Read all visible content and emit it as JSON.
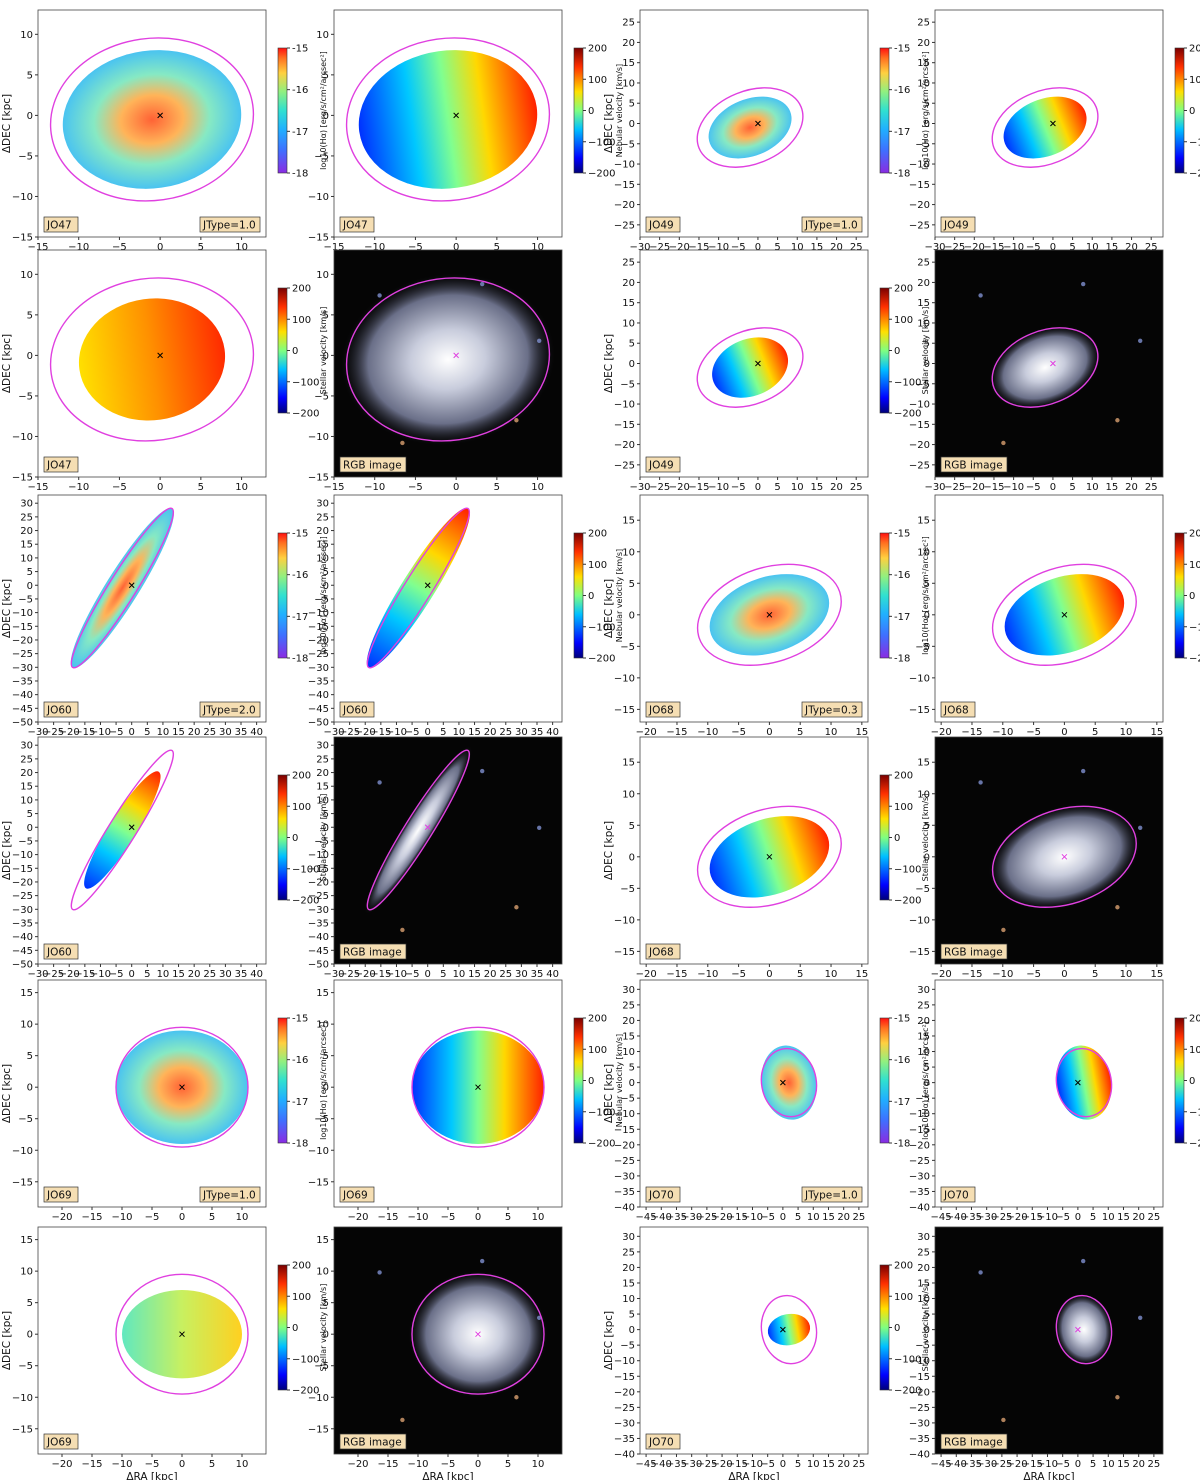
{
  "figure": {
    "colors": {
      "contour": "#e040e0",
      "tag_fill": "#f5deb3",
      "rgb_background": "#050505"
    },
    "labels": {
      "dec": "ΔDEC [kpc]",
      "ra": "ΔRA [kpc]",
      "ha_cbar": "log10(Hα) [erg/s/cm²/arcsec²]",
      "nebular_cbar": "Nebular velocity [km/s]",
      "stellar_cbar": "Stellar velocity [km/s]",
      "rgb": "RGB image"
    },
    "ha_cbar_ticks": [
      "-15",
      "-16",
      "-17",
      "-18"
    ],
    "vel_cbar_ticks": [
      "200",
      "100",
      "0",
      "−100",
      "−200"
    ]
  },
  "chart_data": [
    {
      "type": "heatmap",
      "galaxy": "JO47",
      "panel": "Hα flux",
      "jtype": "JType=1.0",
      "xlim": [
        -15,
        13
      ],
      "ylim": [
        -15,
        13
      ],
      "xticks": [
        -15,
        -10,
        -5,
        0,
        5,
        10
      ],
      "yticks": [
        -15,
        -10,
        -5,
        0,
        5,
        10
      ],
      "colorbar": {
        "label": "log10(Hα) [erg/s/cm²/arcsec²]",
        "range": [
          -18,
          -15
        ]
      }
    },
    {
      "type": "heatmap",
      "galaxy": "JO47",
      "panel": "Nebular velocity",
      "xlim": [
        -15,
        13
      ],
      "ylim": [
        -15,
        13
      ],
      "xticks": [
        -15,
        -10,
        -5,
        0,
        5,
        10
      ],
      "yticks": [
        -15,
        -10,
        -5,
        0,
        5,
        10
      ],
      "colorbar": {
        "label": "Nebular velocity [km/s]",
        "range": [
          -200,
          200
        ]
      }
    },
    {
      "type": "heatmap",
      "galaxy": "JO47",
      "panel": "Stellar velocity",
      "xlim": [
        -15,
        13
      ],
      "ylim": [
        -15,
        13
      ],
      "xticks": [
        -15,
        -10,
        -5,
        0,
        5,
        10
      ],
      "yticks": [
        -15,
        -10,
        -5,
        0,
        5,
        10
      ],
      "colorbar": {
        "label": "Stellar velocity [km/s]",
        "range": [
          -200,
          200
        ]
      }
    },
    {
      "type": "heatmap",
      "galaxy": "JO47",
      "panel": "RGB image",
      "xlim": [
        -15,
        13
      ],
      "ylim": [
        -15,
        13
      ],
      "xticks": [
        -15,
        -10,
        -5,
        0,
        5,
        10
      ],
      "yticks": [
        -15,
        -10,
        -5,
        0,
        5,
        10
      ]
    },
    {
      "type": "heatmap",
      "galaxy": "JO49",
      "panel": "Hα flux",
      "jtype": "JType=1.0",
      "xlim": [
        -30,
        28
      ],
      "ylim": [
        -28,
        28
      ],
      "xticks": [
        -30,
        -25,
        -20,
        -15,
        -10,
        -5,
        0,
        5,
        10,
        15,
        20,
        25
      ],
      "yticks": [
        -25,
        -20,
        -15,
        -10,
        -5,
        0,
        5,
        10,
        15,
        20,
        25
      ],
      "colorbar": {
        "label": "log10(Hα) [erg/s/cm²/arcsec²]",
        "range": [
          -18,
          -15
        ]
      }
    },
    {
      "type": "heatmap",
      "galaxy": "JO49",
      "panel": "Nebular velocity",
      "xlim": [
        -30,
        28
      ],
      "ylim": [
        -28,
        28
      ],
      "xticks": [
        -30,
        -25,
        -20,
        -15,
        -10,
        -5,
        0,
        5,
        10,
        15,
        20,
        25
      ],
      "yticks": [
        -25,
        -20,
        -15,
        -10,
        -5,
        0,
        5,
        10,
        15,
        20,
        25
      ],
      "colorbar": {
        "label": "Nebular velocity [km/s]",
        "range": [
          -200,
          200
        ]
      }
    },
    {
      "type": "heatmap",
      "galaxy": "JO49",
      "panel": "Stellar velocity",
      "xlim": [
        -30,
        28
      ],
      "ylim": [
        -28,
        28
      ],
      "xticks": [
        -30,
        -25,
        -20,
        -15,
        -10,
        -5,
        0,
        5,
        10,
        15,
        20,
        25
      ],
      "yticks": [
        -25,
        -20,
        -15,
        -10,
        -5,
        0,
        5,
        10,
        15,
        20,
        25
      ],
      "colorbar": {
        "label": "Stellar velocity [km/s]",
        "range": [
          -200,
          200
        ]
      }
    },
    {
      "type": "heatmap",
      "galaxy": "JO49",
      "panel": "RGB image",
      "xlim": [
        -30,
        28
      ],
      "ylim": [
        -28,
        28
      ],
      "xticks": [
        -30,
        -25,
        -20,
        -15,
        -10,
        -5,
        0,
        5,
        10,
        15,
        20,
        25
      ],
      "yticks": [
        -25,
        -20,
        -15,
        -10,
        -5,
        0,
        5,
        10,
        15,
        20,
        25
      ]
    },
    {
      "type": "heatmap",
      "galaxy": "JO60",
      "panel": "Hα flux",
      "jtype": "JType=2.0",
      "xlim": [
        -30,
        43
      ],
      "ylim": [
        -50,
        33
      ],
      "xticks": [
        -30,
        -25,
        -20,
        -15,
        -10,
        -5,
        0,
        5,
        10,
        15,
        20,
        25,
        30,
        35,
        40
      ],
      "yticks": [
        -50,
        -45,
        -40,
        -35,
        -30,
        -25,
        -20,
        -15,
        -10,
        -5,
        0,
        5,
        10,
        15,
        20,
        25,
        30
      ],
      "colorbar": {
        "label": "log10(Hα) [erg/s/cm²/arcsec²]",
        "range": [
          -18,
          -15
        ]
      }
    },
    {
      "type": "heatmap",
      "galaxy": "JO60",
      "panel": "Nebular velocity",
      "xlim": [
        -30,
        43
      ],
      "ylim": [
        -50,
        33
      ],
      "xticks": [
        -30,
        -25,
        -20,
        -15,
        -10,
        -5,
        0,
        5,
        10,
        15,
        20,
        25,
        30,
        35,
        40
      ],
      "yticks": [
        -50,
        -45,
        -40,
        -35,
        -30,
        -25,
        -20,
        -15,
        -10,
        -5,
        0,
        5,
        10,
        15,
        20,
        25,
        30
      ],
      "colorbar": {
        "label": "Nebular velocity [km/s]",
        "range": [
          -200,
          200
        ]
      }
    },
    {
      "type": "heatmap",
      "galaxy": "JO60",
      "panel": "Stellar velocity",
      "xlim": [
        -30,
        43
      ],
      "ylim": [
        -50,
        33
      ],
      "xticks": [
        -30,
        -25,
        -20,
        -15,
        -10,
        -5,
        0,
        5,
        10,
        15,
        20,
        25,
        30,
        35,
        40
      ],
      "yticks": [
        -50,
        -45,
        -40,
        -35,
        -30,
        -25,
        -20,
        -15,
        -10,
        -5,
        0,
        5,
        10,
        15,
        20,
        25,
        30
      ],
      "colorbar": {
        "label": "Stellar velocity [km/s]",
        "range": [
          -200,
          200
        ]
      }
    },
    {
      "type": "heatmap",
      "galaxy": "JO60",
      "panel": "RGB image",
      "xlim": [
        -30,
        43
      ],
      "ylim": [
        -50,
        33
      ],
      "xticks": [
        -30,
        -25,
        -20,
        -15,
        -10,
        -5,
        0,
        5,
        10,
        15,
        20,
        25,
        30,
        35,
        40
      ],
      "yticks": [
        -50,
        -45,
        -40,
        -35,
        -30,
        -25,
        -20,
        -15,
        -10,
        -5,
        0,
        5,
        10,
        15,
        20,
        25,
        30
      ]
    },
    {
      "type": "heatmap",
      "galaxy": "JO68",
      "panel": "Hα flux",
      "jtype": "JType=0.3",
      "xlim": [
        -21,
        16
      ],
      "ylim": [
        -17,
        19
      ],
      "xticks": [
        -20,
        -15,
        -10,
        -5,
        0,
        5,
        10,
        15
      ],
      "yticks": [
        -15,
        -10,
        -5,
        0,
        5,
        10,
        15
      ],
      "colorbar": {
        "label": "log10(Hα) [erg/s/cm²/arcsec²]",
        "range": [
          -18,
          -15
        ]
      }
    },
    {
      "type": "heatmap",
      "galaxy": "JO68",
      "panel": "Nebular velocity",
      "xlim": [
        -21,
        16
      ],
      "ylim": [
        -17,
        19
      ],
      "xticks": [
        -20,
        -15,
        -10,
        -5,
        0,
        5,
        10,
        15
      ],
      "yticks": [
        -15,
        -10,
        -5,
        0,
        5,
        10,
        15
      ],
      "colorbar": {
        "label": "Nebular velocity [km/s]",
        "range": [
          -200,
          200
        ]
      }
    },
    {
      "type": "heatmap",
      "galaxy": "JO68",
      "panel": "Stellar velocity",
      "xlim": [
        -21,
        16
      ],
      "ylim": [
        -17,
        19
      ],
      "xticks": [
        -20,
        -15,
        -10,
        -5,
        0,
        5,
        10,
        15
      ],
      "yticks": [
        -15,
        -10,
        -5,
        0,
        5,
        10,
        15
      ],
      "colorbar": {
        "label": "Stellar velocity [km/s]",
        "range": [
          -200,
          200
        ]
      }
    },
    {
      "type": "heatmap",
      "galaxy": "JO68",
      "panel": "RGB image",
      "xlim": [
        -21,
        16
      ],
      "ylim": [
        -17,
        19
      ],
      "xticks": [
        -20,
        -15,
        -10,
        -5,
        0,
        5,
        10,
        15
      ],
      "yticks": [
        -15,
        -10,
        -5,
        0,
        5,
        10,
        15
      ]
    },
    {
      "type": "heatmap",
      "galaxy": "JO69",
      "panel": "Hα flux",
      "jtype": "JType=1.0",
      "xlim": [
        -24,
        14
      ],
      "ylim": [
        -19,
        17
      ],
      "xticks": [
        -20,
        -15,
        -10,
        -5,
        0,
        5,
        10
      ],
      "yticks": [
        -15,
        -10,
        -5,
        0,
        5,
        10,
        15
      ],
      "colorbar": {
        "label": "log10(Hα) [erg/s/cm²/arcsec²]",
        "range": [
          -18,
          -15
        ]
      }
    },
    {
      "type": "heatmap",
      "galaxy": "JO69",
      "panel": "Nebular velocity",
      "xlim": [
        -24,
        14
      ],
      "ylim": [
        -19,
        17
      ],
      "xticks": [
        -20,
        -15,
        -10,
        -5,
        0,
        5,
        10
      ],
      "yticks": [
        -15,
        -10,
        -5,
        0,
        5,
        10,
        15
      ],
      "colorbar": {
        "label": "Nebular velocity [km/s]",
        "range": [
          -200,
          200
        ]
      }
    },
    {
      "type": "heatmap",
      "galaxy": "JO69",
      "panel": "Stellar velocity",
      "xlim": [
        -24,
        14
      ],
      "ylim": [
        -19,
        17
      ],
      "xticks": [
        -20,
        -15,
        -10,
        -5,
        0,
        5,
        10
      ],
      "yticks": [
        -15,
        -10,
        -5,
        0,
        5,
        10,
        15
      ],
      "colorbar": {
        "label": "Stellar velocity [km/s]",
        "range": [
          -200,
          200
        ]
      }
    },
    {
      "type": "heatmap",
      "galaxy": "JO69",
      "panel": "RGB image",
      "xlim": [
        -24,
        14
      ],
      "ylim": [
        -19,
        17
      ],
      "xticks": [
        -20,
        -15,
        -10,
        -5,
        0,
        5,
        10
      ],
      "yticks": [
        -15,
        -10,
        -5,
        0,
        5,
        10,
        15
      ]
    },
    {
      "type": "heatmap",
      "galaxy": "JO70",
      "panel": "Hα flux",
      "jtype": "JType=1.0",
      "xlim": [
        -47,
        28
      ],
      "ylim": [
        -40,
        33
      ],
      "xticks": [
        -45,
        -40,
        -35,
        -30,
        -25,
        -20,
        -15,
        -10,
        -5,
        0,
        5,
        10,
        15,
        20,
        25
      ],
      "yticks": [
        -40,
        -35,
        -30,
        -25,
        -20,
        -15,
        -10,
        -5,
        0,
        5,
        10,
        15,
        20,
        25,
        30
      ],
      "colorbar": {
        "label": "log10(Hα) [erg/s/cm²/arcsec²]",
        "range": [
          -18,
          -15
        ]
      }
    },
    {
      "type": "heatmap",
      "galaxy": "JO70",
      "panel": "Nebular velocity",
      "xlim": [
        -47,
        28
      ],
      "ylim": [
        -40,
        33
      ],
      "xticks": [
        -45,
        -40,
        -35,
        -30,
        -25,
        -20,
        -15,
        -10,
        -5,
        0,
        5,
        10,
        15,
        20,
        25
      ],
      "yticks": [
        -40,
        -35,
        -30,
        -25,
        -20,
        -15,
        -10,
        -5,
        0,
        5,
        10,
        15,
        20,
        25,
        30
      ],
      "colorbar": {
        "label": "Nebular velocity [km/s]",
        "range": [
          -200,
          200
        ]
      }
    },
    {
      "type": "heatmap",
      "galaxy": "JO70",
      "panel": "Stellar velocity",
      "xlim": [
        -47,
        28
      ],
      "ylim": [
        -40,
        33
      ],
      "xticks": [
        -45,
        -40,
        -35,
        -30,
        -25,
        -20,
        -15,
        -10,
        -5,
        0,
        5,
        10,
        15,
        20,
        25
      ],
      "yticks": [
        -40,
        -35,
        -30,
        -25,
        -20,
        -15,
        -10,
        -5,
        0,
        5,
        10,
        15,
        20,
        25,
        30
      ],
      "colorbar": {
        "label": "Stellar velocity [km/s]",
        "range": [
          -200,
          200
        ]
      }
    },
    {
      "type": "heatmap",
      "galaxy": "JO70",
      "panel": "RGB image",
      "xlim": [
        -47,
        28
      ],
      "ylim": [
        -40,
        33
      ],
      "xticks": [
        -45,
        -40,
        -35,
        -30,
        -25,
        -20,
        -15,
        -10,
        -5,
        0,
        5,
        10,
        15,
        20,
        25
      ],
      "yticks": [
        -40,
        -35,
        -30,
        -25,
        -20,
        -15,
        -10,
        -5,
        0,
        5,
        10,
        15,
        20,
        25,
        30
      ]
    }
  ]
}
